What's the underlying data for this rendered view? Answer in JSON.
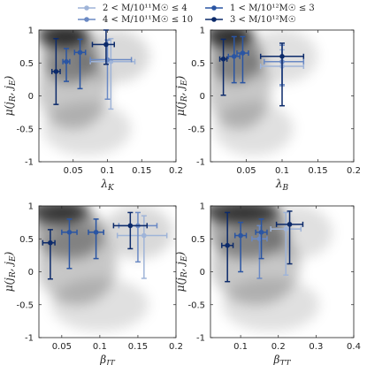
{
  "legend": [
    {
      "label": "2 < M/10¹¹M☉ ≤ 4",
      "color": "#9fb4d8"
    },
    {
      "label": "4 < M/10¹¹M☉ ≤ 10",
      "color": "#6a89c4"
    },
    {
      "label": "1 < M/10¹²M☉ ≤ 3",
      "color": "#2a55a3"
    },
    {
      "label": "3 < M/10¹²M☉",
      "color": "#0c2a6a"
    }
  ],
  "chart_data": [
    {
      "type": "scatter",
      "xlabel": "λK",
      "ylabel": "μ(jR, jE)",
      "xlim": [
        0,
        0.2
      ],
      "ylim": [
        -1,
        1
      ],
      "xticks": [
        0.05,
        0.1,
        0.15,
        0.2
      ],
      "xtick_labels": [
        "0.05",
        "0.1",
        "0.15",
        "0.2"
      ],
      "yticks": [
        -1,
        -0.5,
        0,
        0.5,
        1
      ],
      "ytick_labels": [
        "-1",
        "-0.5",
        "0",
        "0.5",
        "1"
      ],
      "background": "2D density (grayscale), densest near x≈0.02–0.05, y≈0.8–1",
      "series": [
        {
          "name": "2 < M/10¹¹M☉ ≤ 4",
          "color": "#9fb4d8",
          "points": [
            {
              "x": 0.105,
              "y": 0.52,
              "xerr": [
                0.03,
                0.035
              ],
              "yerr": [
                0.72,
                0.35
              ]
            }
          ]
        },
        {
          "name": "4 < M/10¹¹M☉ ≤ 10",
          "color": "#6a89c4",
          "points": [
            {
              "x": 0.1,
              "y": 0.55,
              "xerr": [
                0.025,
                0.035
              ],
              "yerr": [
                0.6,
                0.3
              ]
            }
          ]
        },
        {
          "name": "1 < M/10¹²M☉ ≤ 3",
          "color": "#2a55a3",
          "points": [
            {
              "x": 0.04,
              "y": 0.52,
              "xerr": [
                0.005,
                0.005
              ],
              "yerr": [
                0.3,
                0.2
              ]
            },
            {
              "x": 0.06,
              "y": 0.66,
              "xerr": [
                0.008,
                0.008
              ],
              "yerr": [
                0.55,
                0.2
              ]
            }
          ]
        },
        {
          "name": "3 < M/10¹²M☉",
          "color": "#0c2a6a",
          "points": [
            {
              "x": 0.025,
              "y": 0.37,
              "xerr": [
                0.006,
                0.006
              ],
              "yerr": [
                0.5,
                0.5
              ]
            },
            {
              "x": 0.098,
              "y": 0.78,
              "xerr": [
                0.02,
                0.012
              ],
              "yerr": [
                0.3,
                0.22
              ]
            }
          ]
        }
      ]
    },
    {
      "type": "scatter",
      "xlabel": "λB",
      "ylabel": "μ(jR, jE)",
      "xlim": [
        0,
        0.2
      ],
      "ylim": [
        -1,
        1
      ],
      "xticks": [
        0.05,
        0.1,
        0.15,
        0.2
      ],
      "xtick_labels": [
        "0.05",
        "0.1",
        "0.15",
        "0.2"
      ],
      "yticks": [
        -1,
        -0.5,
        0,
        0.5,
        1
      ],
      "ytick_labels": [
        "-1",
        "-0.5",
        "0",
        "0.5",
        "1"
      ],
      "background": "2D density (grayscale), densest near x≈0.01–0.04, y≈0.8–1",
      "series": [
        {
          "name": "2 < M/10¹¹M☉ ≤ 4",
          "color": "#9fb4d8",
          "points": [
            {
              "x": 0.1,
              "y": 0.45,
              "xerr": [
                0.03,
                0.03
              ],
              "yerr": [
                0.3,
                0.25
              ]
            }
          ]
        },
        {
          "name": "4 < M/10¹¹M☉ ≤ 10",
          "color": "#6a89c4",
          "points": [
            {
              "x": 0.1,
              "y": 0.52,
              "xerr": [
                0.025,
                0.03
              ],
              "yerr": [
                0.35,
                0.25
              ]
            }
          ]
        },
        {
          "name": "1 < M/10¹²M☉ ≤ 3",
          "color": "#2a55a3",
          "points": [
            {
              "x": 0.033,
              "y": 0.6,
              "xerr": [
                0.008,
                0.008
              ],
              "yerr": [
                0.4,
                0.3
              ]
            },
            {
              "x": 0.045,
              "y": 0.65,
              "xerr": [
                0.008,
                0.008
              ],
              "yerr": [
                0.45,
                0.25
              ]
            }
          ]
        },
        {
          "name": "3 < M/10¹²M☉",
          "color": "#0c2a6a",
          "points": [
            {
              "x": 0.018,
              "y": 0.56,
              "xerr": [
                0.005,
                0.005
              ],
              "yerr": [
                0.55,
                0.3
              ]
            },
            {
              "x": 0.1,
              "y": 0.6,
              "xerr": [
                0.03,
                0.03
              ],
              "yerr": [
                0.75,
                0.2
              ]
            }
          ]
        }
      ]
    },
    {
      "type": "scatter",
      "xlabel": "βIT",
      "ylabel": "μ(jR, jE)",
      "xlim": [
        0.02,
        0.2
      ],
      "ylim": [
        -1,
        1
      ],
      "xticks": [
        0.05,
        0.1,
        0.15,
        0.2
      ],
      "xtick_labels": [
        "0.05",
        "0.1",
        "0.15",
        "0.2"
      ],
      "yticks": [
        -1,
        -0.5,
        0,
        0.5,
        1
      ],
      "ytick_labels": [
        "-1",
        "-0.5",
        "0",
        "0.5",
        "1"
      ],
      "background": "2D density (grayscale), densest near x≈0.03–0.06, y≈0.8–1",
      "series": [
        {
          "name": "2 < M/10¹¹M☉ ≤ 4",
          "color": "#9fb4d8",
          "points": [
            {
              "x": 0.158,
              "y": 0.55,
              "xerr": [
                0.035,
                0.03
              ],
              "yerr": [
                0.65,
                0.3
              ]
            }
          ]
        },
        {
          "name": "4 < M/10¹¹M☉ ≤ 10",
          "color": "#6a89c4",
          "points": [
            {
              "x": 0.15,
              "y": 0.7,
              "xerr": [
                0.025,
                0.025
              ],
              "yerr": [
                0.55,
                0.2
              ]
            }
          ]
        },
        {
          "name": "1 < M/10¹²M☉ ≤ 3",
          "color": "#2a55a3",
          "points": [
            {
              "x": 0.06,
              "y": 0.6,
              "xerr": [
                0.01,
                0.01
              ],
              "yerr": [
                0.55,
                0.2
              ]
            },
            {
              "x": 0.095,
              "y": 0.6,
              "xerr": [
                0.01,
                0.01
              ],
              "yerr": [
                0.4,
                0.2
              ]
            }
          ]
        },
        {
          "name": "3 < M/10¹²M☉",
          "color": "#0c2a6a",
          "points": [
            {
              "x": 0.035,
              "y": 0.44,
              "xerr": [
                0.01,
                0.006
              ],
              "yerr": [
                0.55,
                0.2
              ]
            },
            {
              "x": 0.14,
              "y": 0.7,
              "xerr": [
                0.022,
                0.022
              ],
              "yerr": [
                0.35,
                0.2
              ]
            }
          ]
        }
      ]
    },
    {
      "type": "scatter",
      "xlabel": "βTT",
      "ylabel": "μ(jR, jE)",
      "xlim": [
        0.02,
        0.4
      ],
      "ylim": [
        -1,
        1
      ],
      "xticks": [
        0.1,
        0.2,
        0.3,
        0.4
      ],
      "xtick_labels": [
        "0.1",
        "0.2",
        "0.3",
        "0.4"
      ],
      "yticks": [
        -1,
        -0.5,
        0,
        0.5,
        1
      ],
      "ytick_labels": [
        "-1",
        "-0.5",
        "0",
        "0.5",
        "1"
      ],
      "background": "2D density (grayscale), densest near x≈0.05–0.2, y≈0.8–1",
      "series": [
        {
          "name": "2 < M/10¹¹M☉ ≤ 4",
          "color": "#9fb4d8",
          "points": [
            {
              "x": 0.22,
              "y": 0.65,
              "xerr": [
                0.04,
                0.04
              ],
              "yerr": [
                0.7,
                0.25
              ]
            }
          ]
        },
        {
          "name": "4 < M/10¹¹M☉ ≤ 10",
          "color": "#6a89c4",
          "points": [
            {
              "x": 0.15,
              "y": 0.5,
              "xerr": [
                0.02,
                0.02
              ],
              "yerr": [
                0.6,
                0.2
              ]
            }
          ]
        },
        {
          "name": "1 < M/10¹²M☉ ≤ 3",
          "color": "#2a55a3",
          "points": [
            {
              "x": 0.1,
              "y": 0.55,
              "xerr": [
                0.015,
                0.015
              ],
              "yerr": [
                0.55,
                0.2
              ]
            },
            {
              "x": 0.155,
              "y": 0.6,
              "xerr": [
                0.015,
                0.015
              ],
              "yerr": [
                0.4,
                0.2
              ]
            }
          ]
        },
        {
          "name": "3 < M/10¹²M☉",
          "color": "#0c2a6a",
          "points": [
            {
              "x": 0.065,
              "y": 0.4,
              "xerr": [
                0.015,
                0.015
              ],
              "yerr": [
                0.55,
                0.5
              ]
            },
            {
              "x": 0.23,
              "y": 0.72,
              "xerr": [
                0.035,
                0.035
              ],
              "yerr": [
                0.6,
                0.2
              ]
            }
          ]
        }
      ]
    }
  ]
}
